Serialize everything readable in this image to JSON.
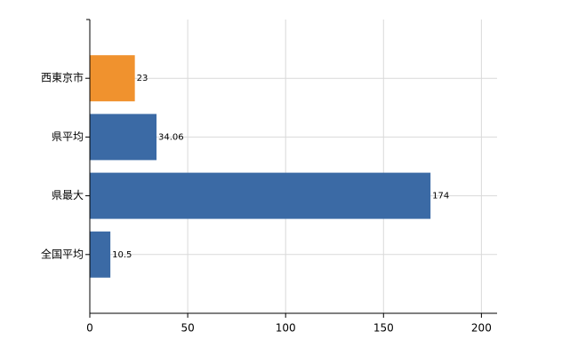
{
  "chart_data": {
    "type": "hbar",
    "categories": [
      "西東京市",
      "県平均",
      "県最大",
      "全国平均"
    ],
    "values": [
      23,
      34.06,
      174,
      10.5
    ],
    "colors": [
      "#f0922e",
      "#3b6aa5",
      "#3b6aa5",
      "#3b6aa5"
    ],
    "xlim": [
      0,
      208
    ],
    "xticks": [
      0,
      50,
      100,
      150,
      200
    ],
    "grid": true
  }
}
